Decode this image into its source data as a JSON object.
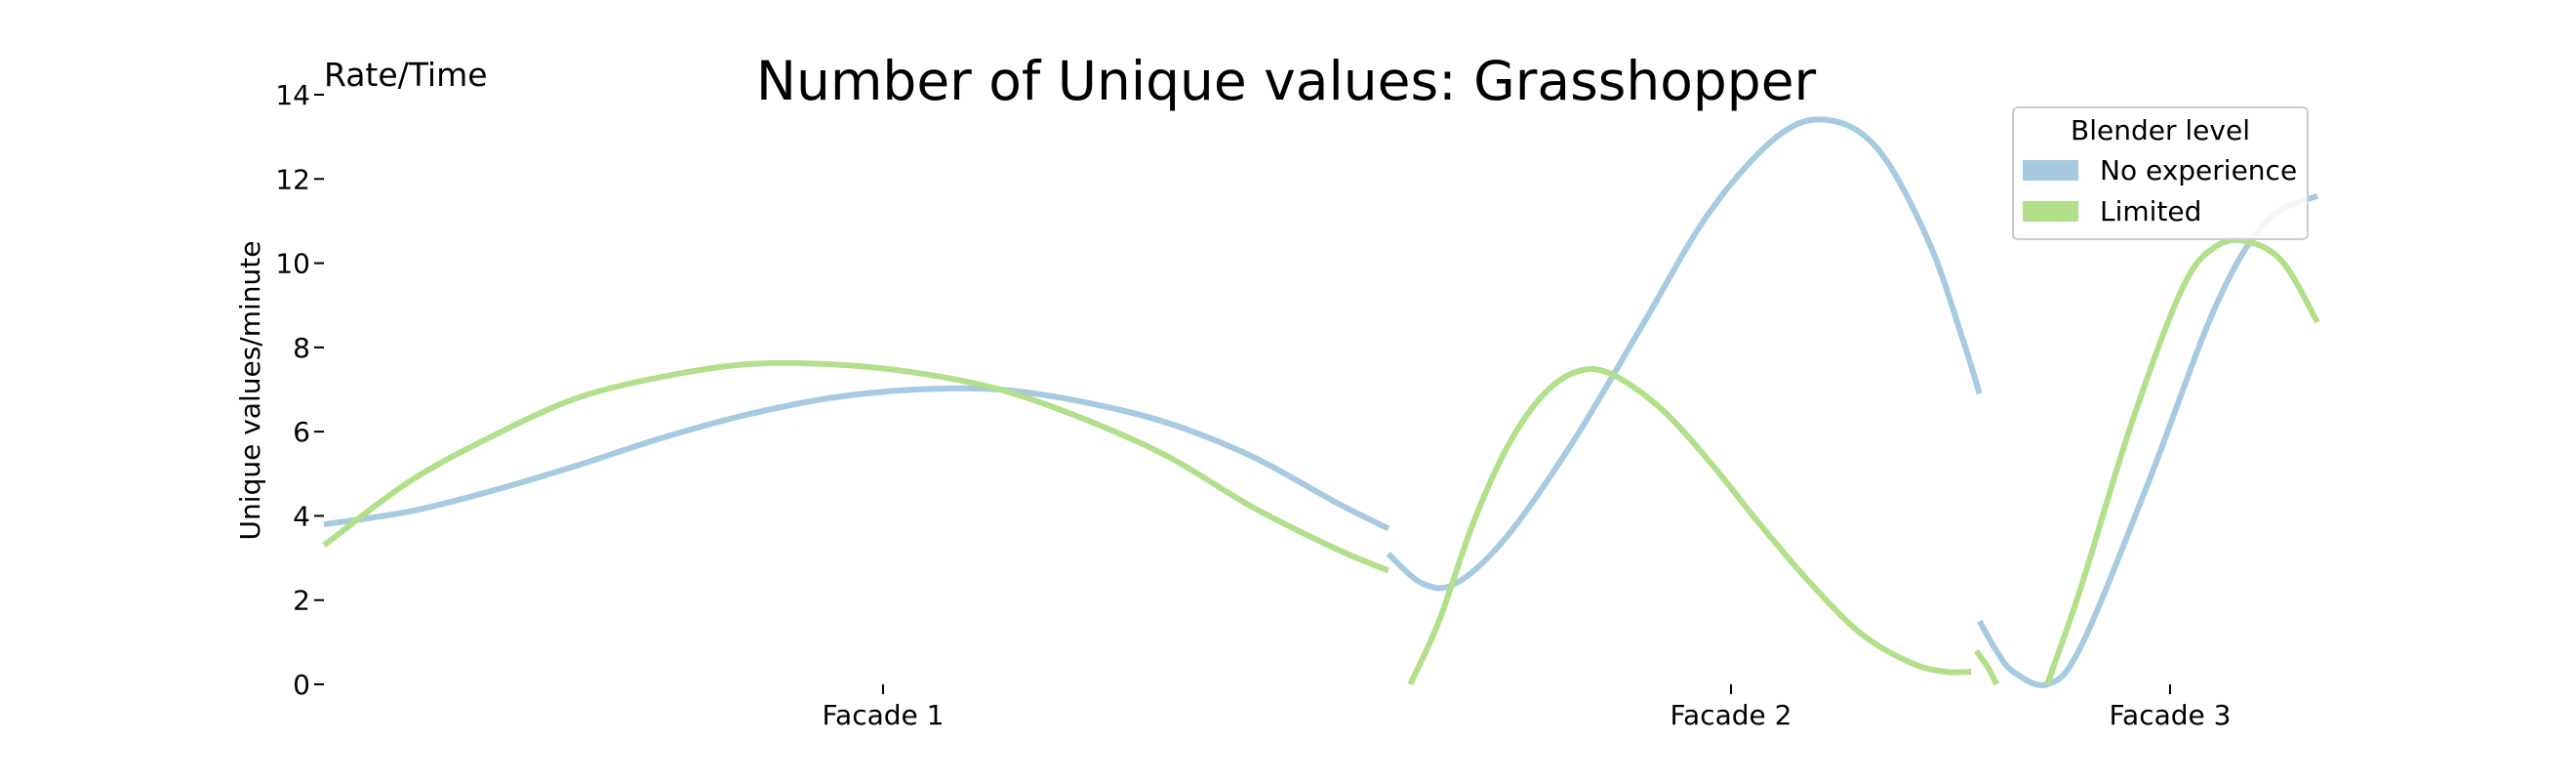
{
  "chart_data": {
    "type": "line",
    "title": "Number of Unique values: Grasshopper",
    "corner_label": "Rate/Time",
    "ylabel": "Unique values/minute",
    "xlabel": "",
    "ylim": [
      0,
      14
    ],
    "yticks": [
      0,
      2,
      4,
      6,
      8,
      10,
      12,
      14
    ],
    "categories": [
      "Facade 1",
      "Facade 2",
      "Facade 3"
    ],
    "legend": {
      "title": "Blender level",
      "placement": "top-right",
      "entries": [
        "No experience",
        "Limited"
      ]
    },
    "grid": false,
    "series": [
      {
        "name": "No experience",
        "color": "#a6cadf",
        "segments": [
          [
            [
              0.0,
              3.8
            ],
            [
              0.05,
              4.1
            ],
            [
              0.1,
              4.6
            ],
            [
              0.15,
              5.2
            ],
            [
              0.2,
              5.85
            ],
            [
              0.25,
              6.4
            ],
            [
              0.3,
              6.8
            ],
            [
              0.35,
              7.0
            ],
            [
              0.4,
              7.0
            ],
            [
              0.45,
              6.7
            ],
            [
              0.5,
              6.2
            ],
            [
              0.55,
              5.4
            ],
            [
              0.6,
              4.3
            ],
            [
              0.63,
              3.7
            ]
          ],
          [
            [
              0.63,
              3.1
            ],
            [
              0.65,
              2.4
            ],
            [
              0.67,
              2.4
            ],
            [
              0.7,
              3.5
            ],
            [
              0.74,
              5.8
            ],
            [
              0.78,
              8.5
            ],
            [
              0.82,
              11.2
            ],
            [
              0.86,
              13.0
            ],
            [
              0.89,
              13.4
            ],
            [
              0.92,
              12.7
            ],
            [
              0.95,
              10.5
            ],
            [
              0.97,
              8.2
            ],
            [
              0.98,
              6.9
            ]
          ],
          [
            [
              0.98,
              1.5
            ],
            [
              0.99,
              0.8
            ],
            [
              1.0,
              0.3
            ],
            [
              1.02,
              0.0
            ],
            [
              1.04,
              0.9
            ],
            [
              1.08,
              4.8
            ],
            [
              1.12,
              9.0
            ],
            [
              1.15,
              11.0
            ],
            [
              1.18,
              11.6
            ]
          ]
        ]
      },
      {
        "name": "Limited",
        "color": "#b2df8a",
        "segments": [
          [
            [
              0.0,
              3.3
            ],
            [
              0.05,
              4.8
            ],
            [
              0.1,
              5.9
            ],
            [
              0.15,
              6.8
            ],
            [
              0.2,
              7.3
            ],
            [
              0.25,
              7.6
            ],
            [
              0.3,
              7.6
            ],
            [
              0.35,
              7.4
            ],
            [
              0.4,
              7.0
            ],
            [
              0.45,
              6.3
            ],
            [
              0.5,
              5.4
            ],
            [
              0.55,
              4.2
            ],
            [
              0.6,
              3.2
            ],
            [
              0.63,
              2.7
            ]
          ],
          [
            [
              0.643,
              0.0
            ],
            [
              0.66,
              1.5
            ],
            [
              0.68,
              3.8
            ],
            [
              0.7,
              5.6
            ],
            [
              0.72,
              6.8
            ],
            [
              0.74,
              7.4
            ],
            [
              0.76,
              7.4
            ],
            [
              0.79,
              6.6
            ],
            [
              0.82,
              5.3
            ],
            [
              0.85,
              3.8
            ],
            [
              0.88,
              2.4
            ],
            [
              0.91,
              1.2
            ],
            [
              0.94,
              0.5
            ],
            [
              0.96,
              0.3
            ],
            [
              0.975,
              0.3
            ]
          ],
          [
            [
              0.978,
              0.8
            ],
            [
              0.985,
              0.4
            ],
            [
              0.99,
              0.0
            ]
          ],
          [
            [
              1.02,
              0.0
            ],
            [
              1.04,
              2.3
            ],
            [
              1.07,
              6.2
            ],
            [
              1.1,
              9.4
            ],
            [
              1.12,
              10.4
            ],
            [
              1.14,
              10.5
            ],
            [
              1.16,
              10.0
            ],
            [
              1.18,
              8.6
            ]
          ]
        ]
      }
    ]
  }
}
